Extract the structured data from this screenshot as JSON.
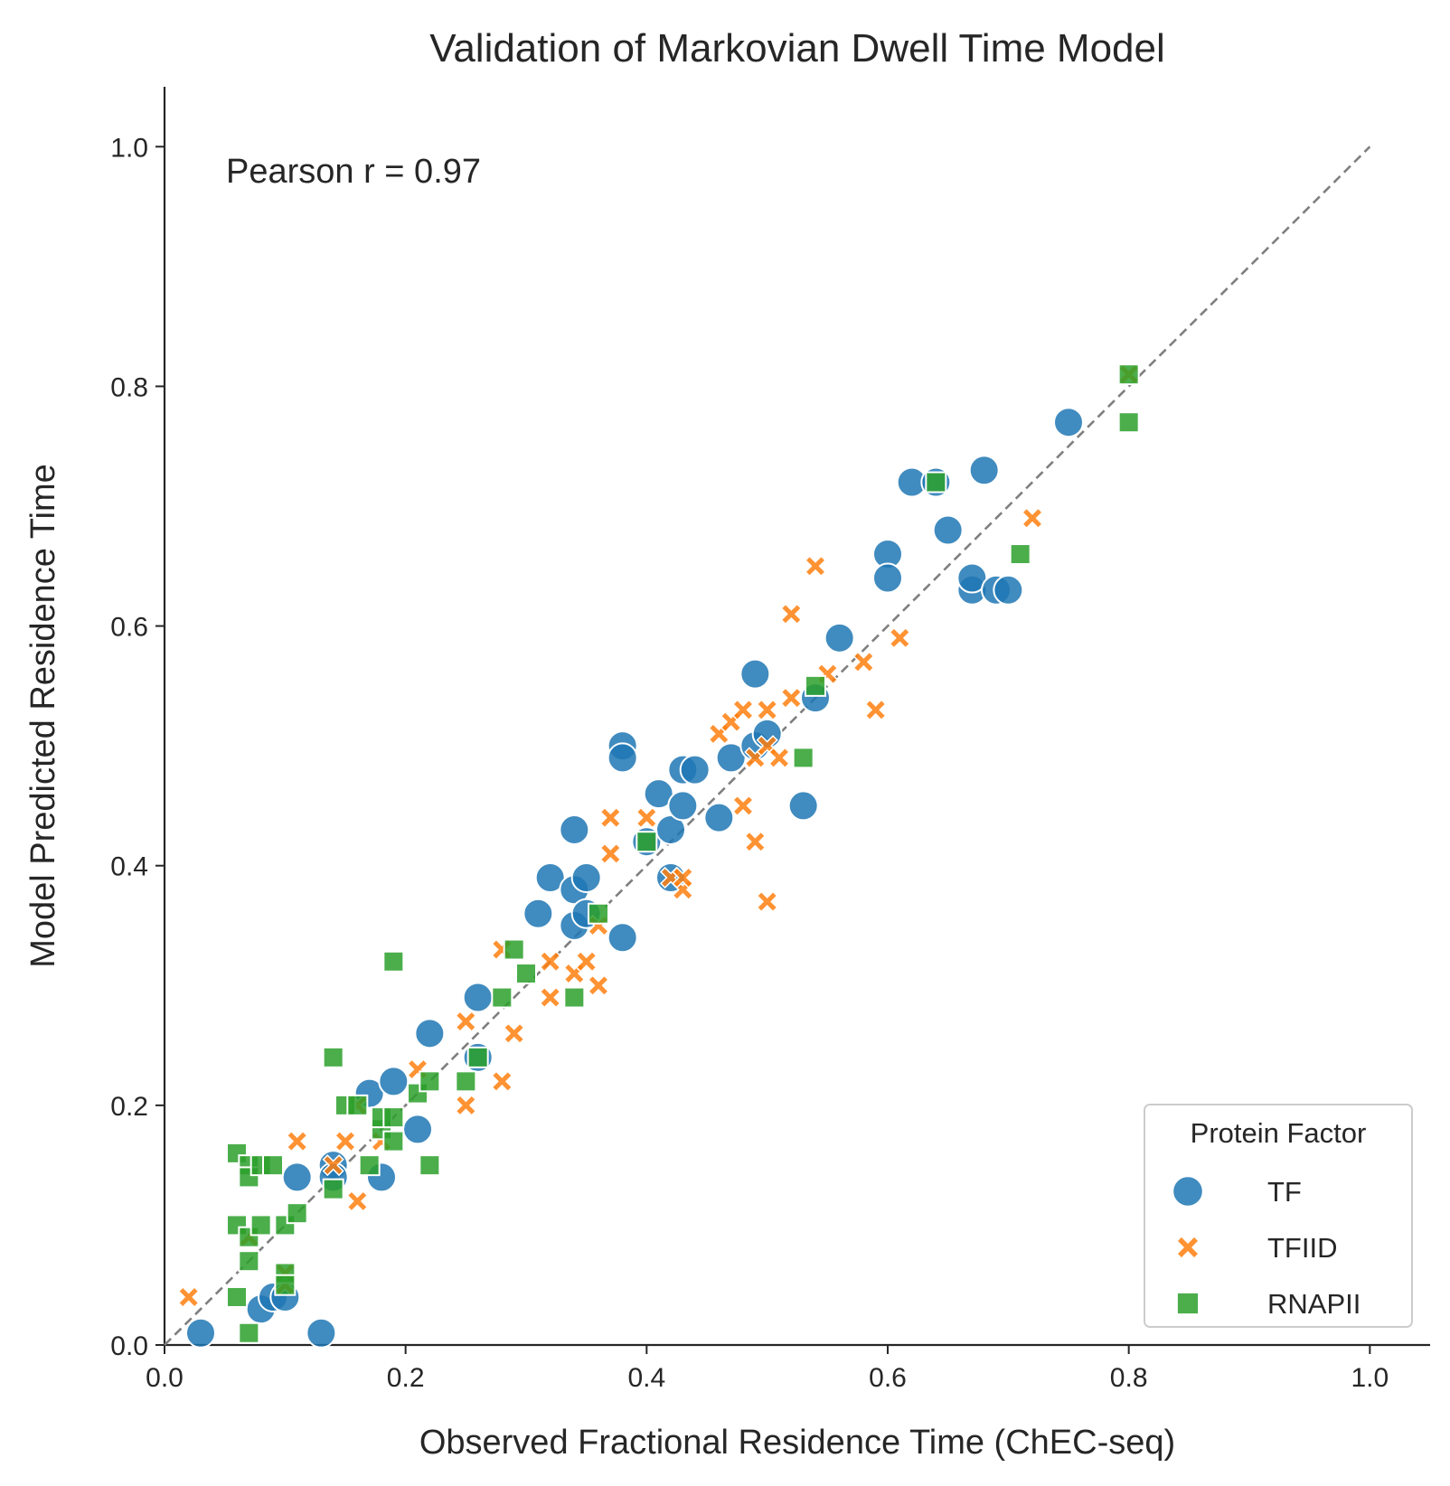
{
  "chart_data": {
    "type": "scatter",
    "title": "Validation of Markovian Dwell Time Model",
    "xlabel": "Observed Fractional Residence Time (ChEC-seq)",
    "ylabel": "Model Predicted Residence Time",
    "xlim": [
      0.0,
      1.05
    ],
    "ylim": [
      0.0,
      1.05
    ],
    "xticks": [
      0.0,
      0.2,
      0.4,
      0.6,
      0.8,
      1.0
    ],
    "yticks": [
      0.0,
      0.2,
      0.4,
      0.6,
      0.8,
      1.0
    ],
    "tick_labels": [
      "0.0",
      "0.2",
      "0.4",
      "0.6",
      "0.8",
      "1.0"
    ],
    "grid": false,
    "annotation": "Pearson r = 0.97",
    "reference_line": {
      "x": [
        0.0,
        1.0
      ],
      "y": [
        0.0,
        1.0
      ],
      "style": "dashed"
    },
    "legend": {
      "title": "Protein Factor",
      "location": "lower-right"
    },
    "series": [
      {
        "name": "TF",
        "marker": "circle",
        "color": "#1f77b4",
        "points": [
          [
            0.03,
            0.01
          ],
          [
            0.08,
            0.03
          ],
          [
            0.09,
            0.04
          ],
          [
            0.1,
            0.04
          ],
          [
            0.13,
            0.01
          ],
          [
            0.11,
            0.14
          ],
          [
            0.14,
            0.15
          ],
          [
            0.14,
            0.14
          ],
          [
            0.17,
            0.21
          ],
          [
            0.18,
            0.14
          ],
          [
            0.19,
            0.22
          ],
          [
            0.21,
            0.18
          ],
          [
            0.22,
            0.26
          ],
          [
            0.26,
            0.24
          ],
          [
            0.26,
            0.29
          ],
          [
            0.31,
            0.36
          ],
          [
            0.32,
            0.39
          ],
          [
            0.34,
            0.38
          ],
          [
            0.34,
            0.35
          ],
          [
            0.35,
            0.36
          ],
          [
            0.35,
            0.39
          ],
          [
            0.34,
            0.43
          ],
          [
            0.38,
            0.34
          ],
          [
            0.38,
            0.5
          ],
          [
            0.38,
            0.49
          ],
          [
            0.4,
            0.42
          ],
          [
            0.41,
            0.46
          ],
          [
            0.42,
            0.39
          ],
          [
            0.42,
            0.43
          ],
          [
            0.43,
            0.45
          ],
          [
            0.43,
            0.48
          ],
          [
            0.44,
            0.48
          ],
          [
            0.46,
            0.44
          ],
          [
            0.47,
            0.49
          ],
          [
            0.49,
            0.56
          ],
          [
            0.49,
            0.5
          ],
          [
            0.5,
            0.51
          ],
          [
            0.53,
            0.45
          ],
          [
            0.54,
            0.54
          ],
          [
            0.56,
            0.59
          ],
          [
            0.6,
            0.66
          ],
          [
            0.6,
            0.64
          ],
          [
            0.62,
            0.72
          ],
          [
            0.64,
            0.72
          ],
          [
            0.65,
            0.68
          ],
          [
            0.67,
            0.63
          ],
          [
            0.67,
            0.64
          ],
          [
            0.68,
            0.73
          ],
          [
            0.69,
            0.63
          ],
          [
            0.7,
            0.63
          ],
          [
            0.75,
            0.77
          ]
        ]
      },
      {
        "name": "TFIID",
        "marker": "x",
        "color": "#ff7f0e",
        "points": [
          [
            0.02,
            0.04
          ],
          [
            0.07,
            0.09
          ],
          [
            0.1,
            0.05
          ],
          [
            0.1,
            0.06
          ],
          [
            0.11,
            0.17
          ],
          [
            0.14,
            0.15
          ],
          [
            0.15,
            0.17
          ],
          [
            0.16,
            0.12
          ],
          [
            0.16,
            0.2
          ],
          [
            0.18,
            0.17
          ],
          [
            0.21,
            0.23
          ],
          [
            0.25,
            0.2
          ],
          [
            0.25,
            0.27
          ],
          [
            0.28,
            0.33
          ],
          [
            0.28,
            0.22
          ],
          [
            0.29,
            0.26
          ],
          [
            0.32,
            0.32
          ],
          [
            0.32,
            0.29
          ],
          [
            0.34,
            0.31
          ],
          [
            0.35,
            0.32
          ],
          [
            0.36,
            0.3
          ],
          [
            0.36,
            0.35
          ],
          [
            0.37,
            0.44
          ],
          [
            0.37,
            0.41
          ],
          [
            0.4,
            0.44
          ],
          [
            0.42,
            0.39
          ],
          [
            0.43,
            0.38
          ],
          [
            0.43,
            0.39
          ],
          [
            0.46,
            0.51
          ],
          [
            0.47,
            0.52
          ],
          [
            0.48,
            0.45
          ],
          [
            0.48,
            0.53
          ],
          [
            0.49,
            0.42
          ],
          [
            0.49,
            0.49
          ],
          [
            0.5,
            0.37
          ],
          [
            0.5,
            0.5
          ],
          [
            0.5,
            0.53
          ],
          [
            0.51,
            0.49
          ],
          [
            0.52,
            0.54
          ],
          [
            0.52,
            0.61
          ],
          [
            0.54,
            0.65
          ],
          [
            0.55,
            0.56
          ],
          [
            0.58,
            0.57
          ],
          [
            0.59,
            0.53
          ],
          [
            0.61,
            0.59
          ],
          [
            0.72,
            0.69
          ],
          [
            0.8,
            0.81
          ]
        ]
      },
      {
        "name": "RNAPII",
        "marker": "square",
        "color": "#2ca02c",
        "points": [
          [
            0.06,
            0.16
          ],
          [
            0.06,
            0.1
          ],
          [
            0.06,
            0.04
          ],
          [
            0.07,
            0.15
          ],
          [
            0.07,
            0.14
          ],
          [
            0.07,
            0.09
          ],
          [
            0.07,
            0.07
          ],
          [
            0.07,
            0.01
          ],
          [
            0.08,
            0.15
          ],
          [
            0.08,
            0.1
          ],
          [
            0.09,
            0.15
          ],
          [
            0.1,
            0.1
          ],
          [
            0.1,
            0.06
          ],
          [
            0.1,
            0.05
          ],
          [
            0.11,
            0.11
          ],
          [
            0.14,
            0.24
          ],
          [
            0.14,
            0.13
          ],
          [
            0.15,
            0.2
          ],
          [
            0.16,
            0.2
          ],
          [
            0.17,
            0.15
          ],
          [
            0.18,
            0.18
          ],
          [
            0.18,
            0.19
          ],
          [
            0.19,
            0.32
          ],
          [
            0.19,
            0.19
          ],
          [
            0.19,
            0.17
          ],
          [
            0.21,
            0.21
          ],
          [
            0.22,
            0.15
          ],
          [
            0.22,
            0.22
          ],
          [
            0.25,
            0.22
          ],
          [
            0.26,
            0.24
          ],
          [
            0.28,
            0.29
          ],
          [
            0.29,
            0.33
          ],
          [
            0.3,
            0.31
          ],
          [
            0.34,
            0.29
          ],
          [
            0.36,
            0.36
          ],
          [
            0.4,
            0.42
          ],
          [
            0.53,
            0.49
          ],
          [
            0.54,
            0.55
          ],
          [
            0.64,
            0.72
          ],
          [
            0.71,
            0.66
          ],
          [
            0.8,
            0.77
          ],
          [
            0.8,
            0.81
          ]
        ]
      }
    ]
  }
}
